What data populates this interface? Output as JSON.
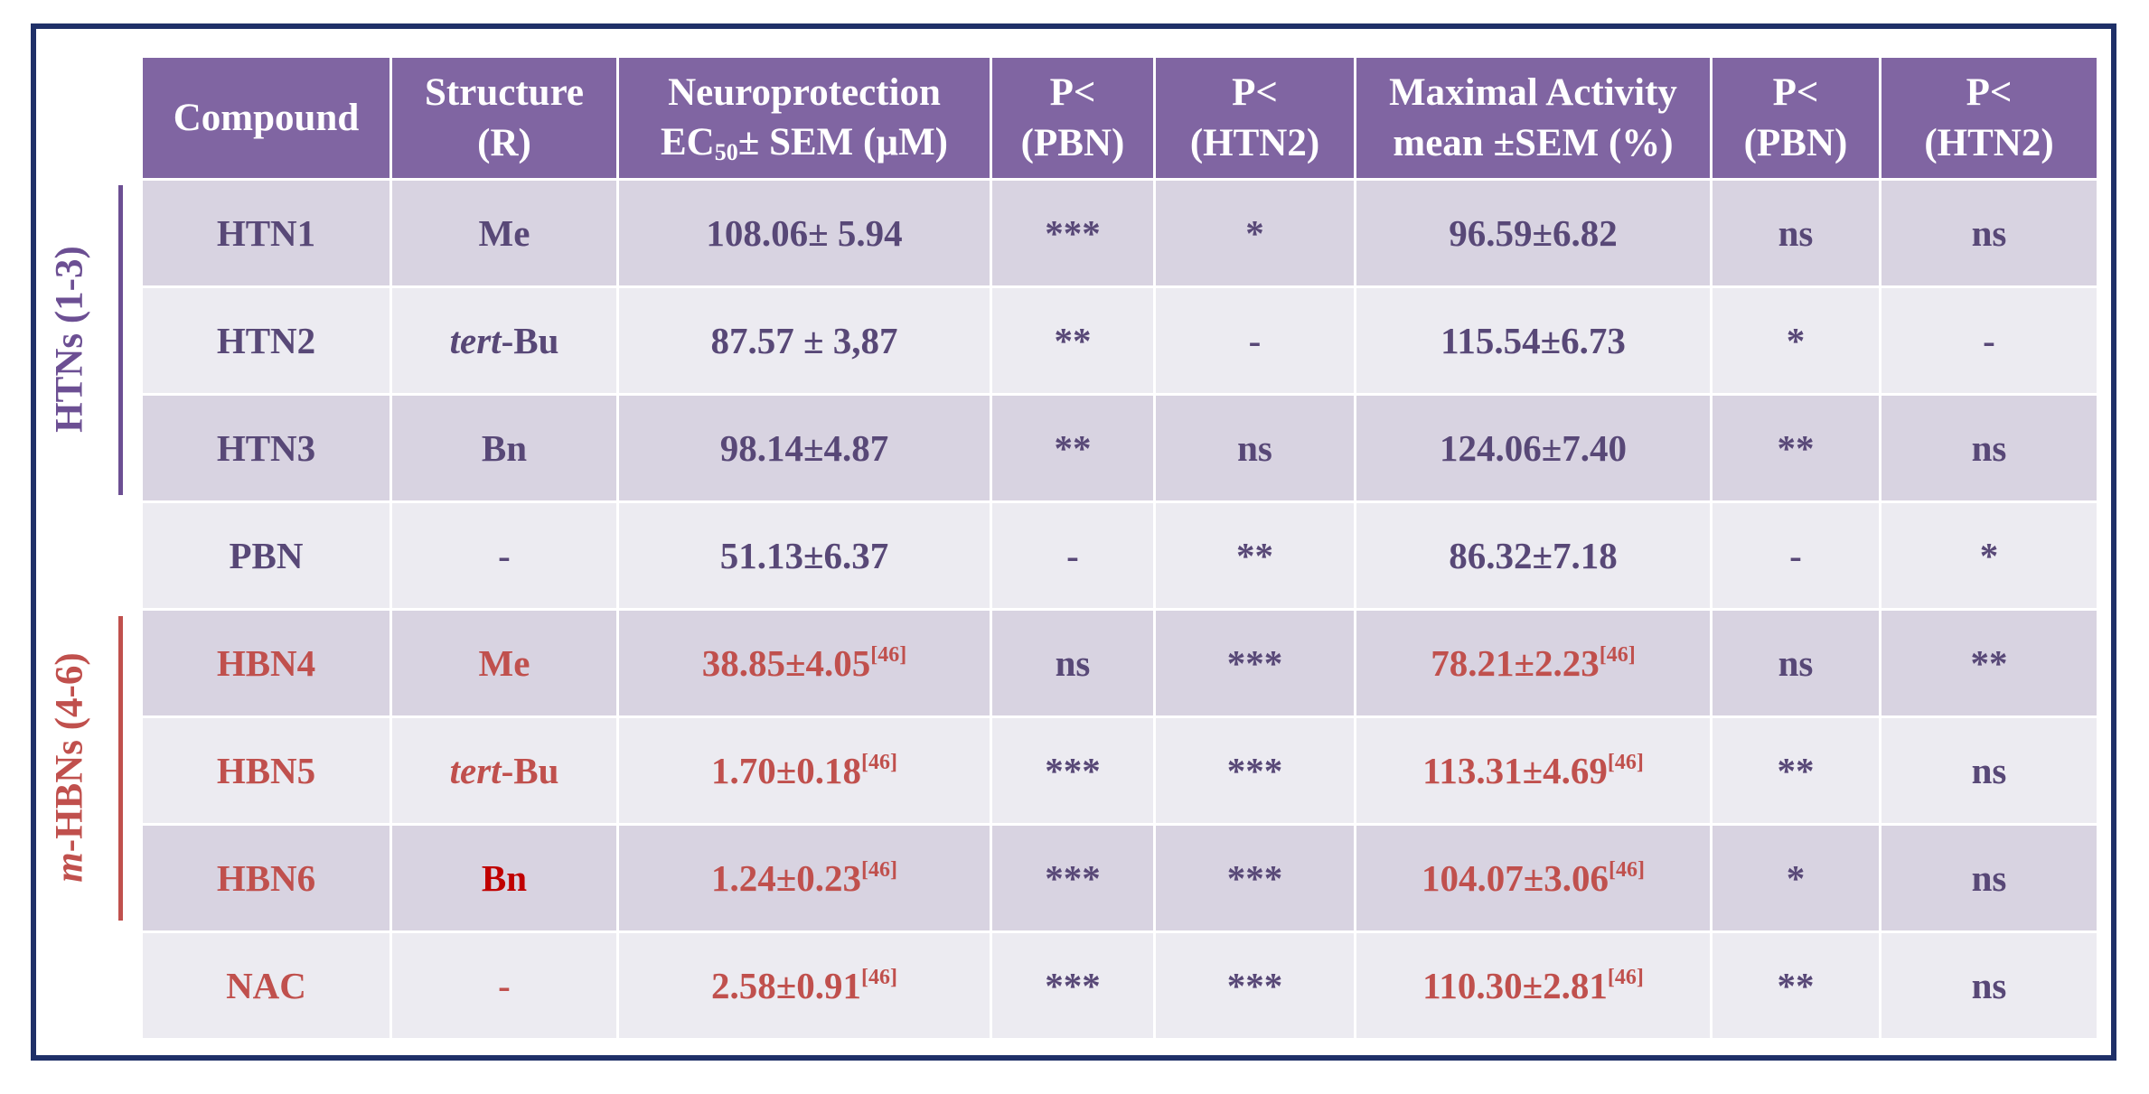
{
  "headers": {
    "compound": "Compound",
    "structure_1": "Structure",
    "structure_2": "(R)",
    "neuro_1": "Neuroprotection",
    "neuro_ec": "EC",
    "neuro_sub": "50",
    "neuro_rest": "± SEM (µM)",
    "p1_1": "P<",
    "p1_2": "(PBN)",
    "p2_1": "P<",
    "p2_2": "(HTN2)",
    "max_1": "Maximal Activity",
    "max_2": "mean ±SEM (%)",
    "p3_1": "P<",
    "p3_2": "(PBN)",
    "p4_1": "P<",
    "p4_2": "(HTN2)"
  },
  "groups": {
    "htns": "HTNs (1-3)",
    "hbns_prefix": "m",
    "hbns_rest": "-HBNs (4-6)"
  },
  "rows": [
    {
      "compound": "HTN1",
      "structure": "Me",
      "ec50": "108.06± 5.94",
      "ec50_ref": "",
      "p_pbn": "***",
      "p_htn2": "*",
      "max": "96.59±6.82",
      "max_ref": "",
      "p2_pbn": "ns",
      "p2_htn2": "ns"
    },
    {
      "compound": "HTN2",
      "structure_italic": "tert",
      "structure": "-Bu",
      "ec50": "87.57 ± 3,87",
      "ec50_ref": "",
      "p_pbn": "**",
      "p_htn2": "-",
      "max": "115.54±6.73",
      "max_ref": "",
      "p2_pbn": "*",
      "p2_htn2": "-"
    },
    {
      "compound": "HTN3",
      "structure": "Bn",
      "ec50": "98.14±4.87",
      "ec50_ref": "",
      "p_pbn": "**",
      "p_htn2": "ns",
      "max": "124.06±7.40",
      "max_ref": "",
      "p2_pbn": "**",
      "p2_htn2": "ns"
    },
    {
      "compound": "PBN",
      "structure": "-",
      "ec50": "51.13±6.37",
      "ec50_ref": "",
      "p_pbn": "-",
      "p_htn2": "**",
      "max": "86.32±7.18",
      "max_ref": "",
      "p2_pbn": "-",
      "p2_htn2": "*"
    },
    {
      "compound": "HBN4",
      "structure": "Me",
      "ec50": "38.85±4.05",
      "ec50_ref": "[46]",
      "p_pbn": "ns",
      "p_htn2": "***",
      "max": "78.21±2.23",
      "max_ref": "[46]",
      "p2_pbn": "ns",
      "p2_htn2": "**"
    },
    {
      "compound": "HBN5",
      "structure_italic": "tert",
      "structure": "-Bu",
      "ec50": "1.70±0.18",
      "ec50_ref": "[46]",
      "p_pbn": "***",
      "p_htn2": "***",
      "max": "113.31±4.69",
      "max_ref": "[46]",
      "p2_pbn": "**",
      "p2_htn2": "ns"
    },
    {
      "compound": "HBN6",
      "structure": "Bn",
      "ec50": "1.24±0.23",
      "ec50_ref": "[46]",
      "p_pbn": "***",
      "p_htn2": "***",
      "max": "104.07±3.06",
      "max_ref": "[46]",
      "p2_pbn": "*",
      "p2_htn2": "ns"
    },
    {
      "compound": "NAC",
      "structure": "-",
      "ec50": "2.58±0.91",
      "ec50_ref": "[46]",
      "p_pbn": "***",
      "p_htn2": "***",
      "max": "110.30±2.81",
      "max_ref": "[46]",
      "p2_pbn": "**",
      "p2_htn2": "ns"
    }
  ],
  "colors": {
    "header_bg": "#8065a2",
    "row_shade": "#d8d3e1",
    "row_light": "#ecebf1",
    "text_purple": "#584877",
    "text_red": "#c0504d",
    "text_bright_red": "#c00000",
    "frame": "#1f3068"
  }
}
